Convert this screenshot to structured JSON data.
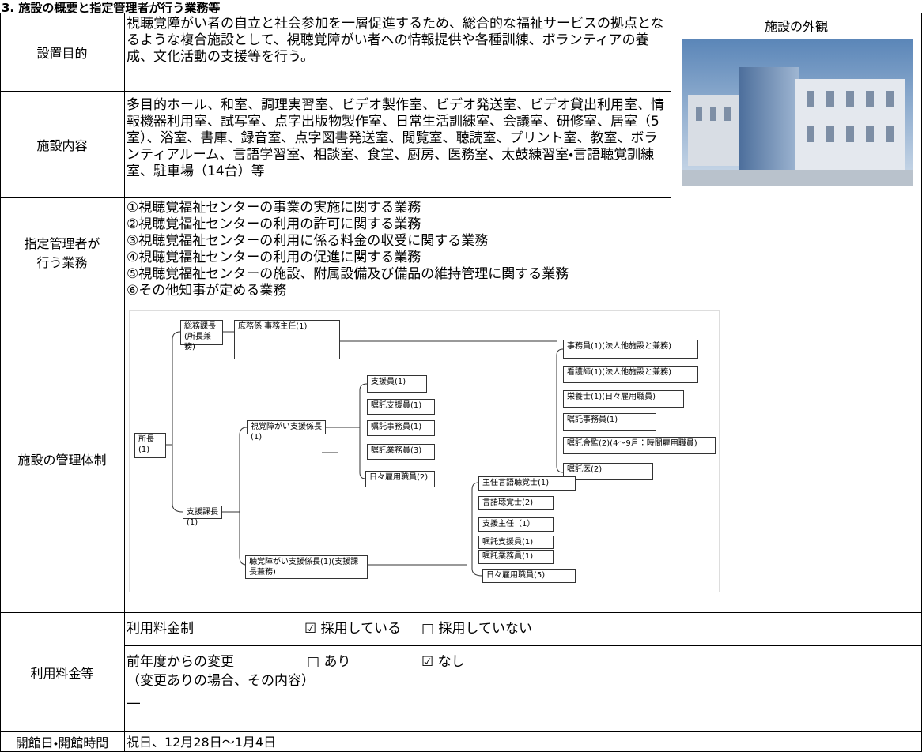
{
  "title": "3. 施設の概要と指定管理者が行う業務等",
  "purpose": {
    "label": "設置目的",
    "text": "視聴覚障がい者の自立と社会参加を一層促進するため、総合的な福祉サービスの拠点となるような複合施設として、視聴覚障がい者への情報提供や各種訓練、ボランティアの養成、文化活動の支援等を行う。"
  },
  "facilities": {
    "label": "施設内容",
    "text": "多目的ホール、和室、調理実習室、ビデオ製作室、ビデオ発送室、ビデオ貸出利用室、情報機器利用室、試写室、点字出版物製作室、日常生活訓練室、会議室、研修室、居室（5室）、浴室、書庫、録音室、点字図書発送室、閲覧室、聴読室、プリント室、教室、ボランティアルーム、言語学習室、相談室、食堂、厨房、医務室、太鼓練習室・言語聴覚訓練室、駐車場（14台）等"
  },
  "duties": {
    "label": "指定管理者が行う業務",
    "items": [
      "①視聴覚福祉センターの事業の実施に関する業務",
      "②視聴覚福祉センターの利用の許可に関する業務",
      "③視聴覚福祉センターの利用に係る料金の収受に関する業務",
      "④視聴覚福祉センターの利用の促進に関する業務",
      "⑤視聴覚福祉センターの施設、附属設備及び備品の維持管理に関する業務",
      "⑥その他知事が定める業務"
    ]
  },
  "exterior": {
    "caption": "施設の外観"
  },
  "management": {
    "label": "施設の管理体制",
    "org_chart": {
      "nodes": [
        {
          "label": "所長(1)"
        },
        {
          "label": "総務課長(所長兼務)"
        },
        {
          "label": "庶務係 事務主任(1)"
        },
        {
          "label": "事務員(1)(法人他施設と兼務)"
        },
        {
          "label": "看護師(1)(法人他施設と兼務)"
        },
        {
          "label": "栄養士(1)(日々雇用職員)"
        },
        {
          "label": "嘱託事務員(1)"
        },
        {
          "label": "嘱託舎監(2)(4～9月：時間雇用職員)"
        },
        {
          "label": "嘱託医(2)"
        },
        {
          "label": "視覚障がい支援係長(1)"
        },
        {
          "label": "支援員(1)"
        },
        {
          "label": "嘱託支援員(1)"
        },
        {
          "label": "嘱託事務員(1)"
        },
        {
          "label": "嘱託業務員(3)"
        },
        {
          "label": "日々雇用職員(2)"
        },
        {
          "label": "支援課長(1)"
        },
        {
          "label": "主任言語聴覚士(1)"
        },
        {
          "label": "言語聴覚士(2)"
        },
        {
          "label": "支援主任（1）"
        },
        {
          "label": "嘱託支援員(1)"
        },
        {
          "label": "嘱託業務員(1)"
        },
        {
          "label": "日々雇用職員(5)"
        },
        {
          "label": "聴覚障がい支援係長(1)(支援課長兼務)"
        }
      ]
    }
  },
  "fees": {
    "label": "利用料金等",
    "fee_system": {
      "label": "利用料金制",
      "options": [
        "☑ 採用している",
        "□ 採用していない"
      ]
    },
    "change": {
      "label": "前年度からの変更",
      "options": [
        "□ あり",
        "☑ なし"
      ],
      "note": "（変更ありの場合、その内容）",
      "detail": "―"
    }
  },
  "hours": {
    "label": "開館日・開館時間",
    "text": "祝日、12月28日～1月4日"
  }
}
